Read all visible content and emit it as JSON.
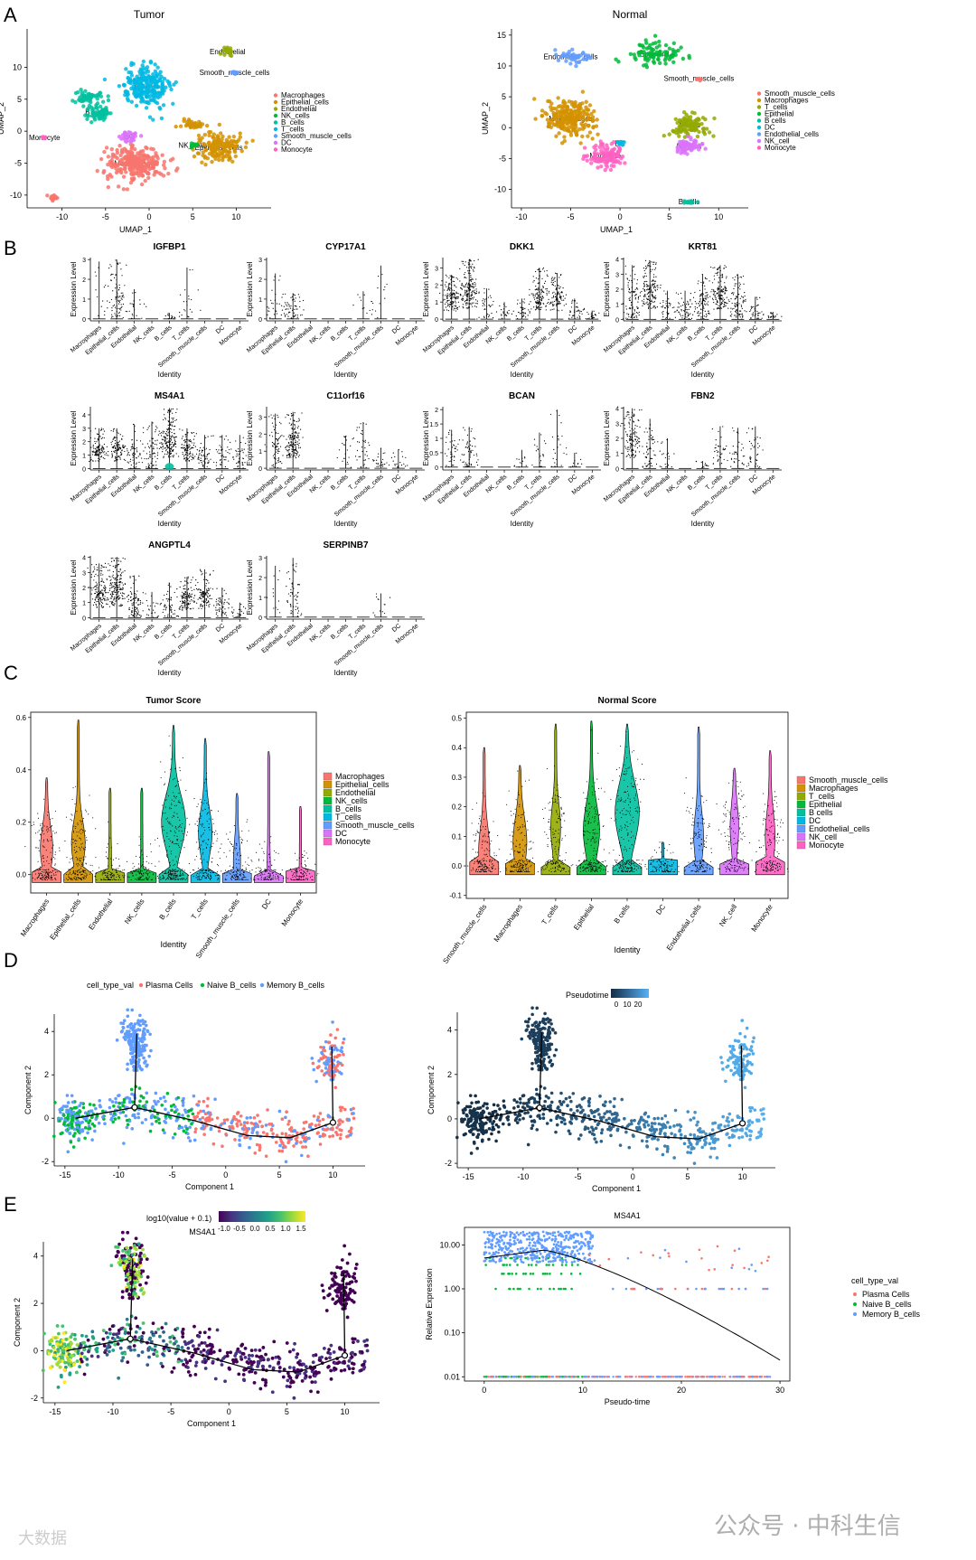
{
  "panel_letters": [
    "A",
    "B",
    "C",
    "D",
    "E"
  ],
  "watermark": {
    "left": "大数据",
    "right": "公众号 · 中科生信"
  },
  "chart_data": [
    {
      "id": "A-tumor",
      "type": "scatter",
      "title": "Tumor",
      "xlabel": "UMAP_1",
      "ylabel": "UMAP_2",
      "xlim": [
        -14,
        14
      ],
      "ylim": [
        -12,
        16
      ],
      "xticks": [
        -10,
        -5,
        0,
        5,
        10
      ],
      "yticks": [
        -10,
        -5,
        0,
        5,
        10
      ],
      "legend": [
        "Macrophages",
        "Epithelial_cells",
        "Endothelial",
        "NK_cells",
        "B_cells",
        "T_cells",
        "Smooth_muscle_cells",
        "DC",
        "Monocyte"
      ],
      "colors": [
        "#F8766D",
        "#D39200",
        "#93AA00",
        "#00BA38",
        "#00C19F",
        "#00B9E3",
        "#619CFF",
        "#DB72FB",
        "#FF61C3"
      ],
      "clusters": [
        {
          "label": "Macrophages",
          "x": -1.5,
          "y": -5,
          "sx": 2.8,
          "sy": 2.2,
          "color": "#F8766D",
          "n": 260
        },
        {
          "label": "T_cells",
          "x": -0.5,
          "y": 7,
          "sx": 2.2,
          "sy": 2.6,
          "color": "#00B9E3",
          "n": 240
        },
        {
          "label": "B_cells",
          "x": -6,
          "y": 3,
          "sx": 1.2,
          "sy": 1.2,
          "color": "#00C19F",
          "n": 60
        },
        {
          "label": "",
          "x": -7,
          "y": 5.5,
          "sx": 1.2,
          "sy": 0.8,
          "color": "#00C19F",
          "n": 50
        },
        {
          "label": "Epithelial_cells",
          "x": 8,
          "y": -2.5,
          "sx": 2.2,
          "sy": 2,
          "color": "#D39200",
          "n": 150
        },
        {
          "label": "",
          "x": 5,
          "y": 1,
          "sx": 1.2,
          "sy": 0.6,
          "color": "#D39200",
          "n": 40
        },
        {
          "label": "Endothelial",
          "x": 9,
          "y": 12.5,
          "sx": 0.5,
          "sy": 0.6,
          "color": "#93AA00",
          "n": 25
        },
        {
          "label": "Smooth_muscle_cells",
          "x": 9.8,
          "y": 9.2,
          "sx": 0.3,
          "sy": 0.3,
          "color": "#619CFF",
          "n": 8
        },
        {
          "label": "NK_cells",
          "x": 5,
          "y": -2.2,
          "sx": 0.4,
          "sy": 0.3,
          "color": "#00BA38",
          "n": 12
        },
        {
          "label": "DC",
          "x": -2.3,
          "y": -0.8,
          "sx": 0.8,
          "sy": 0.8,
          "color": "#DB72FB",
          "n": 30
        },
        {
          "label": "Monocyte",
          "x": -12,
          "y": -1,
          "sx": 0.3,
          "sy": 0.3,
          "color": "#FF61C3",
          "n": 6
        },
        {
          "label": "",
          "x": -11,
          "y": -10.5,
          "sx": 0.4,
          "sy": 0.5,
          "color": "#F8766D",
          "n": 20
        }
      ]
    },
    {
      "id": "A-normal",
      "type": "scatter",
      "title": "Normal",
      "xlabel": "UMAP_1",
      "ylabel": "UMAP_2",
      "xlim": [
        -11,
        13
      ],
      "ylim": [
        -13,
        16
      ],
      "xticks": [
        -10,
        -5,
        0,
        5,
        10
      ],
      "yticks": [
        -10,
        -5,
        0,
        5,
        10,
        15
      ],
      "legend": [
        "Smooth_muscle_cells",
        "Macrophages",
        "T_cells",
        "Epithelial",
        "B cells",
        "DC",
        "Endothelial_cells",
        "NK_cell",
        "Monocyte"
      ],
      "colors": [
        "#F8766D",
        "#D39200",
        "#93AA00",
        "#00BA38",
        "#00C19F",
        "#00B9E3",
        "#619CFF",
        "#DB72FB",
        "#FF61C3"
      ],
      "clusters": [
        {
          "label": "Macrophages",
          "x": -5,
          "y": 1.5,
          "sx": 2.2,
          "sy": 2.3,
          "color": "#D39200",
          "n": 230
        },
        {
          "label": "Monocyte",
          "x": -1.5,
          "y": -4.5,
          "sx": 1.6,
          "sy": 1.6,
          "color": "#FF61C3",
          "n": 110
        },
        {
          "label": "T_cells",
          "x": 7,
          "y": 0.5,
          "sx": 1.6,
          "sy": 1.5,
          "color": "#93AA00",
          "n": 110
        },
        {
          "label": "NK_cell",
          "x": 7,
          "y": -3,
          "sx": 1.3,
          "sy": 0.8,
          "color": "#DB72FB",
          "n": 70
        },
        {
          "label": "Epithelial",
          "x": 3.5,
          "y": 12,
          "sx": 2.2,
          "sy": 1.6,
          "color": "#00BA38",
          "n": 90
        },
        {
          "label": "Endothelial_cells",
          "x": -5,
          "y": 11.5,
          "sx": 1.4,
          "sy": 0.8,
          "color": "#619CFF",
          "n": 40
        },
        {
          "label": "Smooth_muscle_cells",
          "x": 8,
          "y": 8,
          "sx": 0.3,
          "sy": 0.3,
          "color": "#F8766D",
          "n": 5
        },
        {
          "label": "DC",
          "x": 0,
          "y": -2.5,
          "sx": 0.4,
          "sy": 0.3,
          "color": "#00B9E3",
          "n": 10
        },
        {
          "label": "B cells",
          "x": 7,
          "y": -12,
          "sx": 0.6,
          "sy": 0.3,
          "color": "#00C19F",
          "n": 15
        }
      ]
    },
    {
      "id": "B",
      "type": "scatter",
      "xlabel": "Identity",
      "ylabel": "Expression Level",
      "categories": [
        "Macrophages",
        "Epithelial_cells",
        "Endothelial",
        "NK_cells",
        "B_cells",
        "T_cells",
        "Smooth_muscle_cells",
        "DC",
        "Monocyte"
      ],
      "genes": [
        {
          "name": "IGFBP1",
          "ymax": 3,
          "yticks": [
            0,
            1,
            2,
            3
          ],
          "max": [
            2.9,
            3,
            1.5,
            0,
            0.3,
            2.6,
            0,
            0,
            0
          ],
          "density": [
            0.05,
            0.5,
            0.1,
            0,
            0.05,
            0.1,
            0,
            0,
            0
          ]
        },
        {
          "name": "CYP17A1",
          "ymax": 3,
          "yticks": [
            0,
            1,
            2,
            3
          ],
          "max": [
            2.3,
            1.3,
            0,
            0,
            0,
            1.4,
            2.7,
            0,
            0
          ],
          "density": [
            0.15,
            0.3,
            0,
            0,
            0,
            0.05,
            0.05,
            0,
            0
          ]
        },
        {
          "name": "DKK1",
          "ymax": 3.5,
          "yticks": [
            0,
            1,
            2,
            3
          ],
          "max": [
            2.6,
            3.5,
            1.8,
            1,
            1.2,
            3,
            2.7,
            1.2,
            0.5
          ],
          "density": [
            0.8,
            1,
            0.2,
            0.1,
            0.2,
            0.7,
            0.6,
            0.2,
            0.1
          ]
        },
        {
          "name": "KRT81",
          "ymax": 4,
          "yticks": [
            0,
            1,
            2,
            3,
            4
          ],
          "max": [
            3.6,
            3.9,
            1.9,
            1.9,
            3,
            3.6,
            3,
            1.5,
            0.5
          ],
          "density": [
            0.5,
            0.9,
            0.2,
            0.3,
            0.5,
            0.9,
            0.5,
            0.2,
            0.1
          ]
        },
        {
          "name": "MS4A1",
          "ymax": 4.5,
          "yticks": [
            0,
            1,
            2,
            3,
            4
          ],
          "max": [
            3,
            3,
            3.3,
            3.5,
            4.5,
            3,
            2.5,
            2.5,
            2.5
          ],
          "density": [
            0.6,
            0.6,
            0.3,
            0.4,
            1,
            0.6,
            0.3,
            0.2,
            0.2
          ]
        },
        {
          "name": "C11orf16",
          "ymax": 3.5,
          "yticks": [
            0,
            1,
            2,
            3
          ],
          "max": [
            3.2,
            3.3,
            0,
            0,
            1.9,
            2.7,
            1.2,
            1.1,
            0
          ],
          "density": [
            0.4,
            0.9,
            0,
            0,
            0.1,
            0.2,
            0.1,
            0.1,
            0
          ]
        },
        {
          "name": "BCAN",
          "ymax": 2,
          "yticks": [
            0,
            0.5,
            1,
            1.5,
            2
          ],
          "max": [
            1.3,
            1.4,
            0,
            0,
            0.6,
            1.2,
            2,
            0.5,
            0
          ],
          "density": [
            0.2,
            0.3,
            0,
            0,
            0.05,
            0.1,
            0.1,
            0.05,
            0
          ]
        },
        {
          "name": "FBN2",
          "ymax": 4,
          "yticks": [
            0,
            1,
            2,
            3,
            4
          ],
          "max": [
            4,
            3.3,
            2,
            0,
            0.5,
            2.8,
            2.7,
            2.8,
            0
          ],
          "density": [
            0.7,
            0.3,
            0.1,
            0,
            0.05,
            0.2,
            0.2,
            0.2,
            0
          ]
        },
        {
          "name": "ANGPTL4",
          "ymax": 4,
          "yticks": [
            0,
            1,
            2,
            3,
            4
          ],
          "max": [
            3.6,
            4,
            2.8,
            1.7,
            2.3,
            2.7,
            3.2,
            2,
            1
          ],
          "density": [
            0.8,
            1,
            0.5,
            0.1,
            0.3,
            0.7,
            0.6,
            0.3,
            0.1
          ]
        },
        {
          "name": "SERPINB7",
          "ymax": 3,
          "yticks": [
            0,
            1,
            2,
            3
          ],
          "max": [
            2.6,
            3,
            0,
            0,
            0,
            0,
            1.2,
            0,
            0
          ],
          "density": [
            0.05,
            0.3,
            0,
            0,
            0,
            0,
            0.05,
            0,
            0
          ]
        }
      ]
    },
    {
      "id": "C-tumor",
      "type": "scatter",
      "title": "Tumor Score",
      "xlabel": "Identity",
      "ylabel": "",
      "ylim": [
        -0.07,
        0.62
      ],
      "yticks": [
        0,
        0.2,
        0.4,
        0.6
      ],
      "ytick_labels": [
        "0.0",
        "0.2",
        "0.4",
        "0.6"
      ],
      "categories": [
        "Macrophages",
        "Epithelial_cells",
        "Endothelial",
        "NK_cells",
        "B_cells",
        "T_cells",
        "Smooth_muscle_cells",
        "DC",
        "Monocyte"
      ],
      "colors": [
        "#F8766D",
        "#D39200",
        "#93AA00",
        "#00BA38",
        "#00C19F",
        "#00B9E3",
        "#619CFF",
        "#DB72FB",
        "#FF61C3"
      ],
      "max": [
        0.37,
        0.59,
        0.33,
        0.33,
        0.57,
        0.52,
        0.31,
        0.47,
        0.26
      ],
      "upper_mass": [
        0.4,
        0.45,
        0.05,
        0.03,
        0.85,
        0.45,
        0.2,
        0.05,
        0.02
      ],
      "center": [
        0.1,
        0.12,
        0.02,
        0.01,
        0.2,
        0.16,
        0.05,
        0.02,
        0.0
      ],
      "legend": [
        "Macrophages",
        "Epithelial_cells",
        "Endothelial",
        "NK_cells",
        "B_cells",
        "T_cells",
        "Smooth_muscle_cells",
        "DC",
        "Monocyte"
      ]
    },
    {
      "id": "C-normal",
      "type": "scatter",
      "title": "Normal Score",
      "xlabel": "Identity",
      "ylabel": "",
      "ylim": [
        -0.11,
        0.52
      ],
      "yticks": [
        -0.1,
        0,
        0.1,
        0.2,
        0.3,
        0.4,
        0.5
      ],
      "ytick_labels": [
        "-0.1",
        "0.0",
        "0.1",
        "0.2",
        "0.3",
        "0.4",
        "0.5"
      ],
      "categories": [
        "Smooth_muscle_cells",
        "Macrophages",
        "T_cells",
        "Epithelial",
        "B cells",
        "DC",
        "Endothelial_cells",
        "NK_cell",
        "Monocyte"
      ],
      "colors": [
        "#F8766D",
        "#D39200",
        "#93AA00",
        "#00BA38",
        "#00C19F",
        "#00B9E3",
        "#619CFF",
        "#DB72FB",
        "#FF61C3"
      ],
      "max": [
        0.4,
        0.34,
        0.48,
        0.49,
        0.48,
        0.08,
        0.47,
        0.33,
        0.39
      ],
      "upper_mass": [
        0.35,
        0.45,
        0.3,
        0.55,
        0.85,
        0.01,
        0.3,
        0.25,
        0.3
      ],
      "center": [
        0.05,
        0.08,
        0.13,
        0.12,
        0.18,
        0.0,
        0.1,
        0.13,
        0.1
      ],
      "legend": [
        "Smooth_muscle_cells",
        "Macrophages",
        "T_cells",
        "Epithelial",
        "B cells",
        "DC",
        "Endothelial_cells",
        "NK_cell",
        "Monocyte"
      ]
    },
    {
      "id": "D-left",
      "type": "scatter",
      "xlabel": "Component 1",
      "ylabel": "Component 2",
      "xlim": [
        -16,
        13
      ],
      "ylim": [
        -2.2,
        4.8
      ],
      "xticks": [
        -15,
        -10,
        -5,
        0,
        5,
        10
      ],
      "yticks": [
        -2,
        0,
        2,
        4
      ],
      "legend_title": "cell_type_val",
      "legend": [
        "Plasma Cells",
        "Naive B_cells",
        "Memory B_cells"
      ],
      "legend_colors": [
        "#F8766D",
        "#00BA38",
        "#619CFF"
      ]
    },
    {
      "id": "D-right",
      "type": "scatter",
      "xlabel": "Component 1",
      "ylabel": "Component 2",
      "xlim": [
        -16,
        13
      ],
      "ylim": [
        -2.2,
        4.8
      ],
      "xticks": [
        -15,
        -10,
        -5,
        0,
        5,
        10
      ],
      "yticks": [
        -2,
        0,
        2,
        4
      ],
      "legend_title": "Pseudotime",
      "colorbar_ticks": [
        "0",
        "10",
        "20"
      ]
    },
    {
      "id": "E-left",
      "type": "scatter",
      "title": "MS4A1",
      "xlabel": "Component 1",
      "ylabel": "Component 2",
      "xlim": [
        -16,
        13
      ],
      "ylim": [
        -2.2,
        4.6
      ],
      "xticks": [
        -15,
        -10,
        -5,
        0,
        5,
        10
      ],
      "yticks": [
        -2,
        0,
        2,
        4
      ],
      "legend_title": "log10(value + 0.1)",
      "colorbar_ticks": [
        "-1.0",
        "-0.5",
        "0.0",
        "0.5",
        "1.0",
        "1.5"
      ]
    },
    {
      "id": "E-right",
      "type": "scatter",
      "title": "MS4A1",
      "xlabel": "Pseudo-time",
      "ylabel": "Relative Expression",
      "xlim": [
        -2,
        31
      ],
      "xticks": [
        0,
        10,
        20,
        30
      ],
      "yscale": "log",
      "yticks": [
        0.01,
        0.1,
        1,
        10
      ],
      "ytick_labels": [
        "0.01",
        "0.10",
        "1.00",
        "10.00"
      ],
      "legend_title": "cell_type_val",
      "legend": [
        "Plasma Cells",
        "Naive B_cells",
        "Memory B_cells"
      ],
      "legend_colors": [
        "#F8766D",
        "#00BA38",
        "#619CFF"
      ]
    }
  ]
}
